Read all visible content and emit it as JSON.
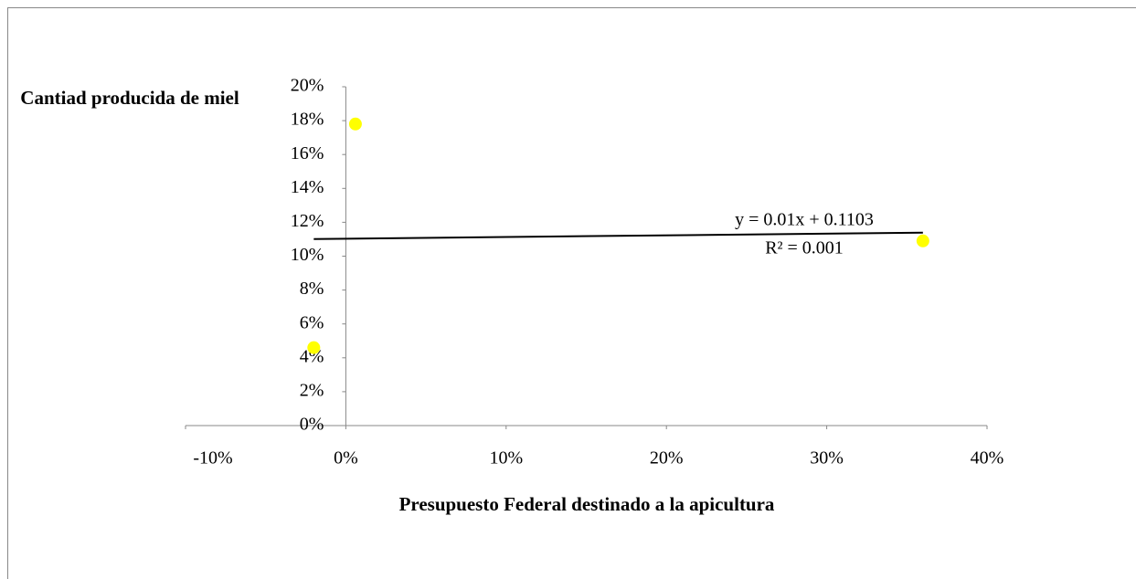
{
  "chart_data": {
    "type": "scatter",
    "xlabel": "Presupuesto Federal destinado a la apicultura",
    "ylabel": "Cantiad producida de miel",
    "series": [
      {
        "name": "Cantiad producida de miel",
        "color": "#ffff00",
        "x": [
          0.006,
          -0.02,
          0.36
        ],
        "values": [
          0.178,
          0.046,
          0.109
        ]
      }
    ],
    "trendline": {
      "equation": "y = 0.01x + 0.1103",
      "r2_label": "R² = 0.001",
      "slope": 0.01,
      "intercept": 0.1103
    },
    "xlim": [
      -0.1,
      0.4
    ],
    "xticks": [
      {
        "value": -0.1,
        "label": "-10%"
      },
      {
        "value": 0,
        "label": "0%"
      },
      {
        "value": 0.1,
        "label": "10%"
      },
      {
        "value": 0.2,
        "label": "20%"
      },
      {
        "value": 0.3,
        "label": "30%"
      },
      {
        "value": 0.4,
        "label": "40%"
      }
    ],
    "ylim": [
      0,
      0.2
    ],
    "yticks": [
      {
        "value": 0,
        "label": "0%"
      },
      {
        "value": 0.02,
        "label": "2%"
      },
      {
        "value": 0.04,
        "label": "4%"
      },
      {
        "value": 0.06,
        "label": "6%"
      },
      {
        "value": 0.08,
        "label": "8%"
      },
      {
        "value": 0.1,
        "label": "10%"
      },
      {
        "value": 0.12,
        "label": "12%"
      },
      {
        "value": 0.14,
        "label": "14%"
      },
      {
        "value": 0.16,
        "label": "16%"
      },
      {
        "value": 0.18,
        "label": "18%"
      },
      {
        "value": 0.2,
        "label": "20%"
      }
    ]
  }
}
